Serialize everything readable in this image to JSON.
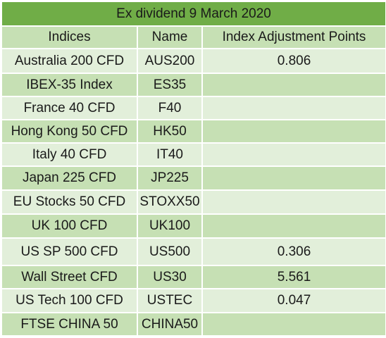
{
  "title": "Ex dividend 9 March 2020",
  "headers": {
    "indices": "Indices",
    "name": "Name",
    "points": "Index Adjustment Points"
  },
  "rows": [
    {
      "index": "Australia 200 CFD",
      "name": "AUS200",
      "points": "0.806"
    },
    {
      "index": "IBEX-35 Index",
      "name": "ES35",
      "points": ""
    },
    {
      "index": "France 40 CFD",
      "name": "F40",
      "points": ""
    },
    {
      "index": "Hong Kong 50 CFD",
      "name": "HK50",
      "points": ""
    },
    {
      "index": "Italy 40 CFD",
      "name": "IT40",
      "points": ""
    },
    {
      "index": "Japan 225 CFD",
      "name": "JP225",
      "points": ""
    },
    {
      "index": "EU Stocks 50 CFD",
      "name": "STOXX50",
      "points": ""
    },
    {
      "index": "UK 100 CFD",
      "name": "UK100",
      "points": ""
    },
    {
      "index": "US SP 500 CFD",
      "name": "US500",
      "points": "0.306"
    },
    {
      "index": "Wall Street CFD",
      "name": "US30",
      "points": "5.561"
    },
    {
      "index": "US Tech 100 CFD",
      "name": "USTEC",
      "points": "0.047"
    },
    {
      "index": "FTSE CHINA 50",
      "name": "CHINA50",
      "points": ""
    }
  ],
  "colors": {
    "title_bg": "#70ad47",
    "header_bg": "#c6e0b4",
    "band_light": "#e2efda",
    "band_dark": "#c6e0b4"
  }
}
